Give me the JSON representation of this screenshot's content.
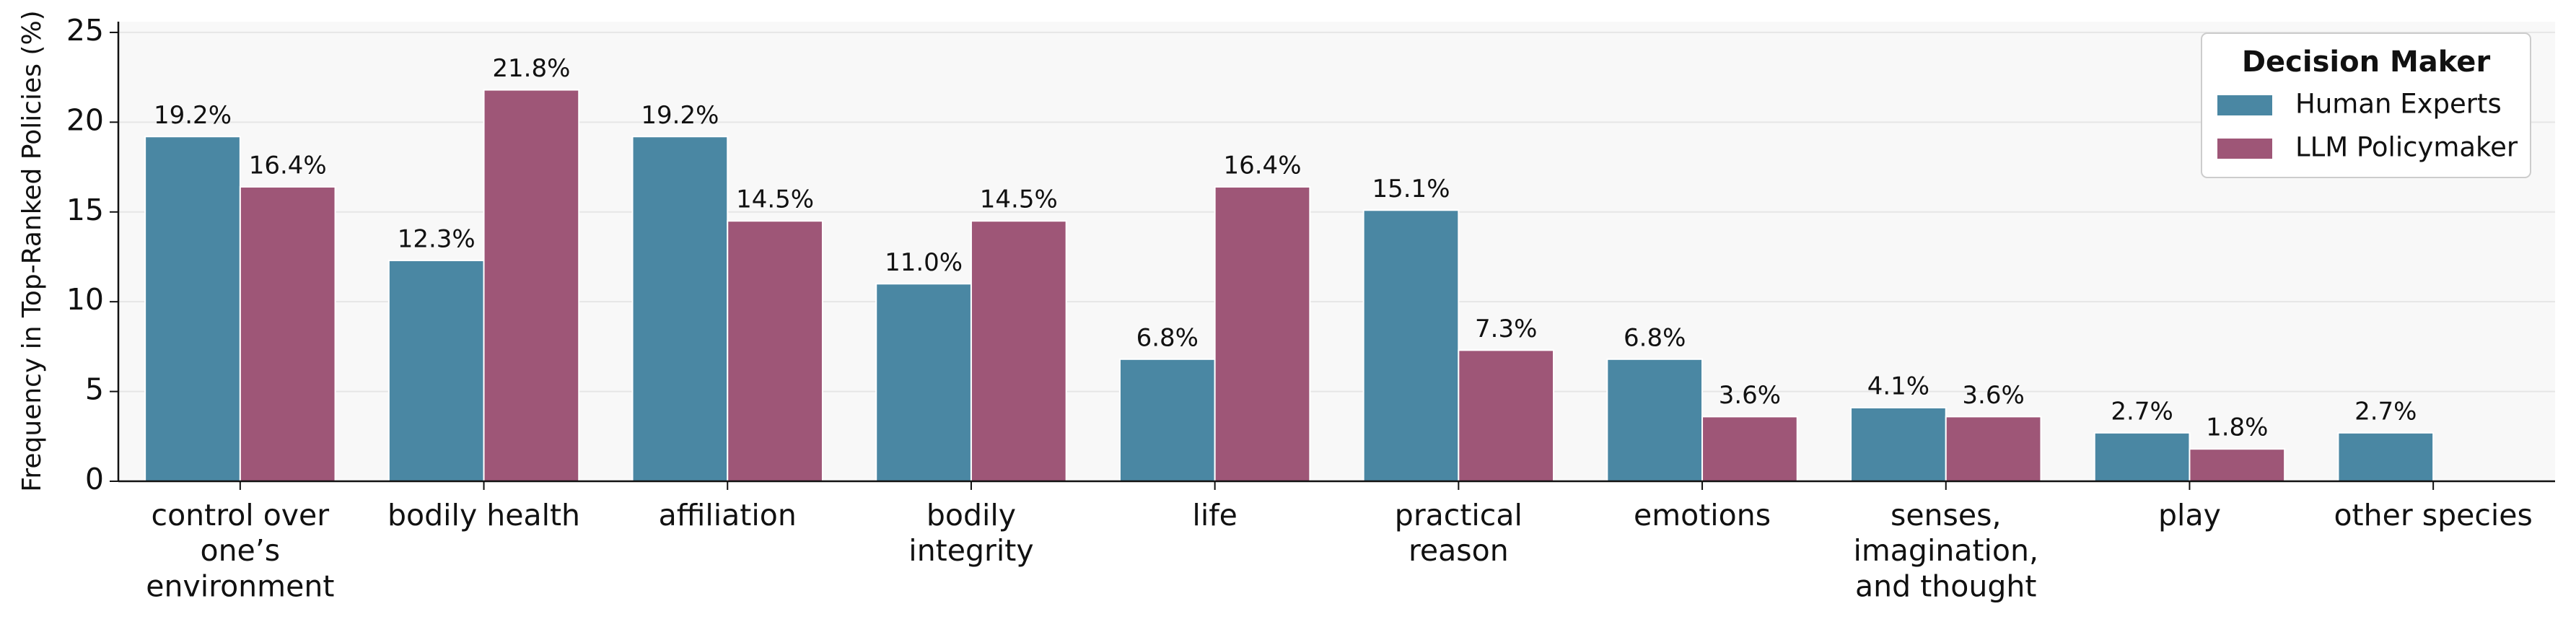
{
  "chart_data": {
    "type": "bar",
    "ylabel": "Frequency in Top-Ranked Policies (%)",
    "categories": [
      "control over\none’s\nenvironment",
      "bodily health",
      "affiliation",
      "bodily\nintegrity",
      "life",
      "practical\nreason",
      "emotions",
      "senses,\nimagination,\nand thought",
      "play",
      "other species"
    ],
    "series": [
      {
        "name": "Human Experts",
        "color": "#4a87a3",
        "values": [
          19.2,
          12.3,
          19.2,
          11.0,
          6.8,
          15.1,
          6.8,
          4.1,
          2.7,
          2.7
        ],
        "value_labels": [
          "19.2%",
          "12.3%",
          "19.2%",
          "11.0%",
          "6.8%",
          "15.1%",
          "6.8%",
          "4.1%",
          "2.7%",
          "2.7%"
        ]
      },
      {
        "name": "LLM Policymaker",
        "color": "#9e5677",
        "values": [
          16.4,
          21.8,
          14.5,
          14.5,
          16.4,
          7.3,
          3.6,
          3.6,
          1.8,
          null
        ],
        "value_labels": [
          "16.4%",
          "21.8%",
          "14.5%",
          "14.5%",
          "16.4%",
          "7.3%",
          "3.6%",
          "3.6%",
          "1.8%",
          null
        ]
      }
    ],
    "legend_title": "Decision Maker",
    "legend": "upper right",
    "ylim": [
      0,
      25.6
    ],
    "yticks": [
      0,
      5,
      10,
      15,
      20,
      25
    ],
    "grid": true
  }
}
